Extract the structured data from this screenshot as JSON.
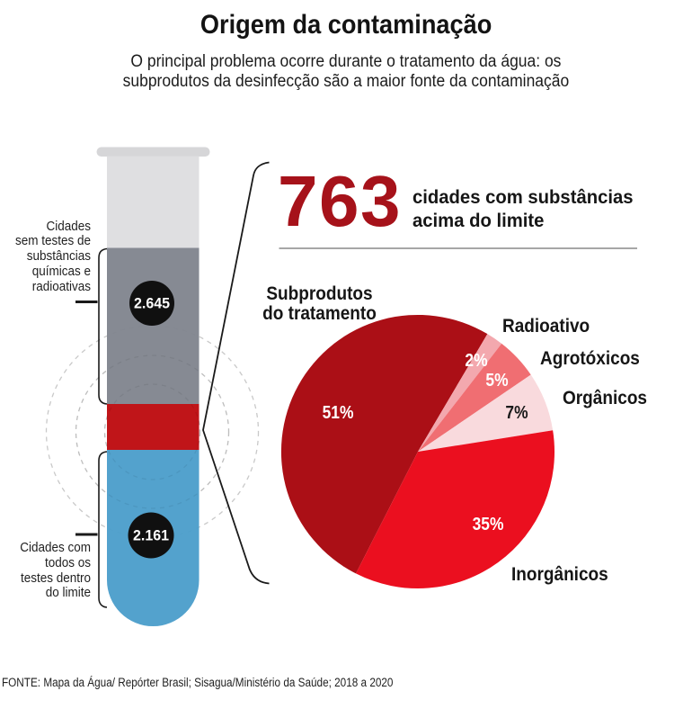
{
  "header": {
    "title": "Origem da contaminação",
    "subtitle_lines": [
      "O principal problema ocorre durante o tratamento da água: os",
      "subprodutos da desinfecção são a maior fonte da contaminação"
    ]
  },
  "tube": {
    "label_no_tests_lines": [
      "Cidades",
      "sem testes de",
      "substâncias",
      "químicas e",
      "radioativas"
    ],
    "label_within_limit_lines": [
      "Cidades com",
      "todos os",
      "testes dentro",
      "do limite"
    ],
    "value_no_tests": "2.645",
    "value_within_limit": "2.161",
    "colors": {
      "rim": "#D4D4D7",
      "empty": "#DEDEE0",
      "no_tests": "#82868F",
      "above_limit": "#BE0C11",
      "within_limit": "#4D9FCB",
      "badge": "#101010"
    }
  },
  "highlight": {
    "number": "763",
    "number_color": "#A6121A",
    "caption_lines": [
      "cidades com substâncias",
      "acima do limite"
    ]
  },
  "chart_data": {
    "type": "pie",
    "title": "Origem da contaminação",
    "start_angle_deg": 243,
    "direction": "clockwise",
    "legend_position": "around",
    "slices": [
      {
        "label": "Subprodutos do tratamento",
        "value": 51,
        "color": "#AB0F16",
        "pct_label": "51%",
        "pct_color": "#ffffff"
      },
      {
        "label": "Radioativo",
        "value": 2,
        "color": "#F3A8AE",
        "pct_label": "2%",
        "pct_color": "#ffffff"
      },
      {
        "label": "Agrotóxicos",
        "value": 5,
        "color": "#F06E72",
        "pct_label": "5%",
        "pct_color": "#ffffff"
      },
      {
        "label": "Orgânicos",
        "value": 7,
        "color": "#F9DADD",
        "pct_label": "7%",
        "pct_color": "#1a1a1a"
      },
      {
        "label": "Inorgânicos",
        "value": 35,
        "color": "#EB0F1F",
        "pct_label": "35%",
        "pct_color": "#ffffff"
      }
    ]
  },
  "footer": {
    "source": "FONTE: Mapa da Água/ Repórter Brasil; Sisagua/Ministério da Saúde; 2018 a 2020"
  }
}
